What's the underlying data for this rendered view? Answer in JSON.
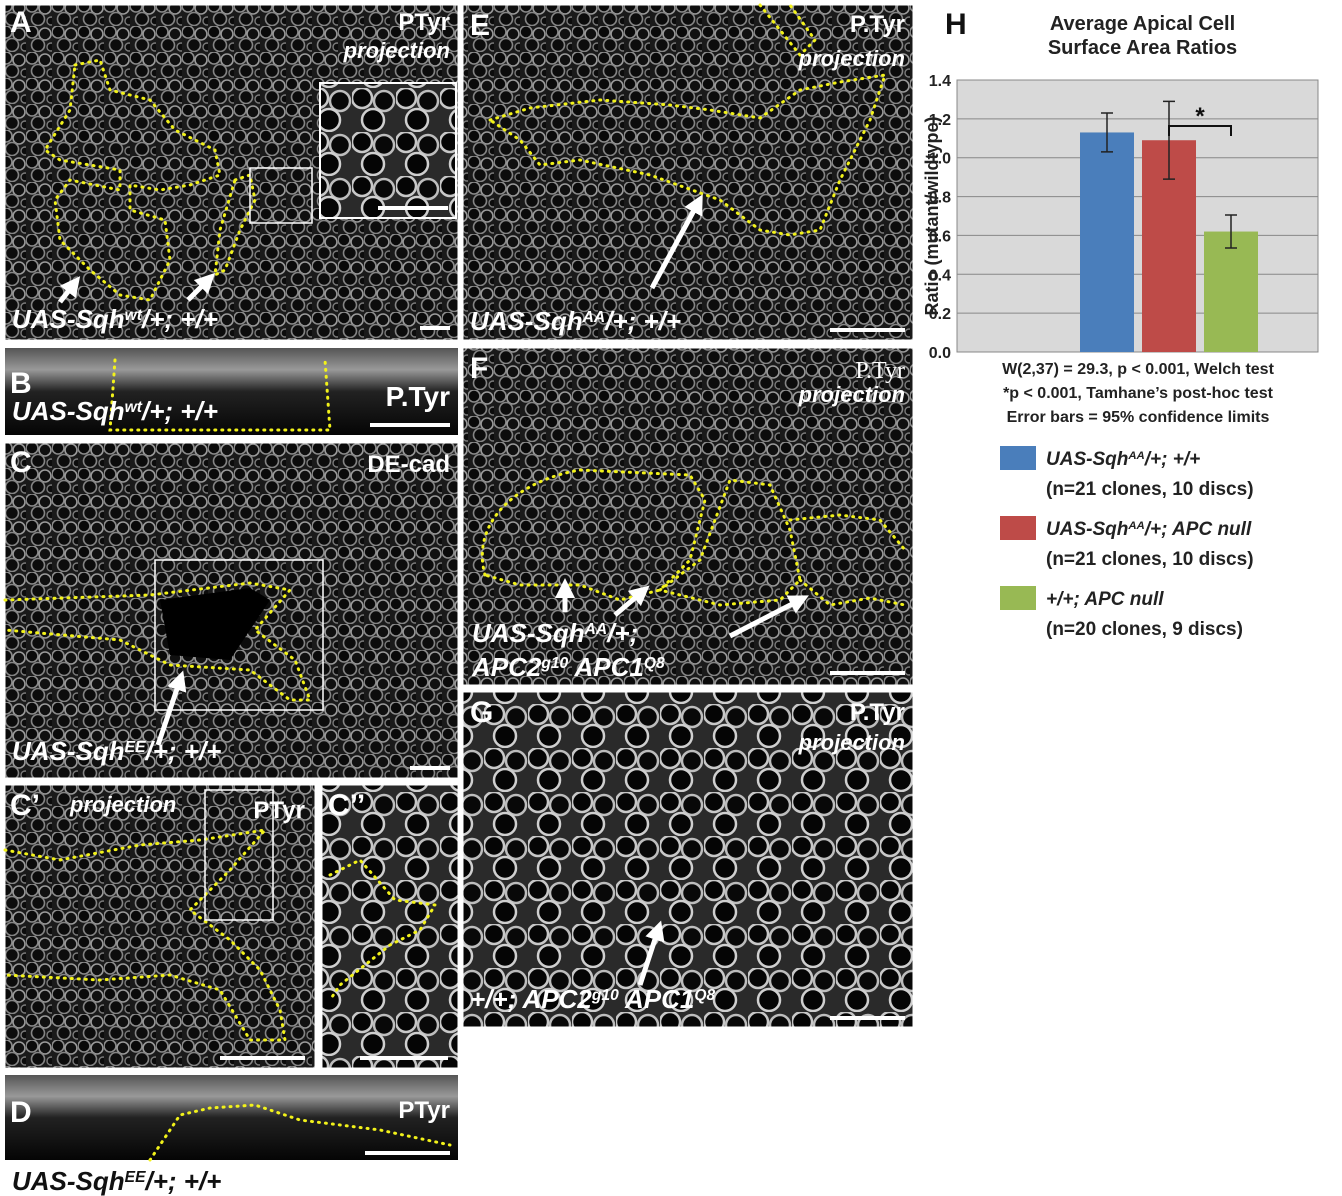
{
  "panels": [
    {
      "label": "A",
      "channel": "PTyr",
      "note": "projection",
      "genotype": [
        {
          "text": "UAS-Sqh"
        },
        {
          "text": "wt",
          "sup": true
        },
        {
          "text": "/+; +/+"
        }
      ]
    },
    {
      "label": "B",
      "channel": "P.Tyr",
      "genotype": [
        {
          "text": "UAS-Sqh"
        },
        {
          "text": "wt",
          "sup": true
        },
        {
          "text": "/+; +/+"
        }
      ]
    },
    {
      "label": "C",
      "channel": "DE-cad",
      "genotype": [
        {
          "text": "UAS-Sqh"
        },
        {
          "text": "EE",
          "sup": true
        },
        {
          "text": "/+; +/+"
        }
      ]
    },
    {
      "label": "C’",
      "channel": "PTyr",
      "note": "projection"
    },
    {
      "label": "C’’"
    },
    {
      "label": "D",
      "channel": "PTyr",
      "genotype": [
        {
          "text": "UAS-Sqh"
        },
        {
          "text": "EE",
          "sup": true
        },
        {
          "text": "/+; +/+"
        }
      ]
    },
    {
      "label": "E",
      "channel": "P.Tyr",
      "note": "projection",
      "genotype": [
        {
          "text": "UAS-Sqh"
        },
        {
          "text": "AA",
          "sup": true
        },
        {
          "text": "/+; +/+"
        }
      ]
    },
    {
      "label": "F",
      "channel": "P.Tyr",
      "note": "projection",
      "genotype": [
        {
          "text": "UAS-Sqh"
        },
        {
          "text": "AA",
          "sup": true
        },
        {
          "text": "/+;"
        }
      ],
      "genotype2": [
        {
          "text": "APC2"
        },
        {
          "text": "g10",
          "sup": true
        },
        {
          "text": " APC1"
        },
        {
          "text": "Q8",
          "sup": true
        }
      ]
    },
    {
      "label": "G",
      "channel": "P.Tyr",
      "note": "projection",
      "genotype": [
        {
          "text": "+/+; APC2"
        },
        {
          "text": "g10",
          "sup": true
        },
        {
          "text": " APC1"
        },
        {
          "text": "Q8",
          "sup": true
        }
      ]
    }
  ],
  "chart_data": {
    "type": "bar",
    "label": "H",
    "title": "Average Apical Cell Surface Area Ratios",
    "y_label": "Ratio (mutant/wildtype)",
    "ylim": [
      0,
      1.4
    ],
    "yticks": [
      {
        "value": 0,
        "label": "0.0"
      },
      0.2,
      0.4,
      0.6,
      0.8,
      {
        "value": 1,
        "label": "1.0"
      },
      1.2,
      1.4
    ],
    "grid": true,
    "series": [
      {
        "name": [
          {
            "text": "UAS-Sqh"
          },
          {
            "text": "AA",
            "sup": true
          },
          {
            "text": "/+; +/+"
          }
        ],
        "detail": "(n=21 clones, 10 discs)",
        "color": "#4a7ebb",
        "values": [
          1.13
        ],
        "errors": [
          0.1
        ]
      },
      {
        "name": [
          {
            "text": "UAS-Sqh"
          },
          {
            "text": "AA",
            "sup": true
          },
          {
            "text": "/+; APC null"
          }
        ],
        "detail": "(n=21 clones, 10 discs)",
        "color": "#be4b48",
        "values": [
          1.09
        ],
        "errors": [
          0.2
        ]
      },
      {
        "name": [
          {
            "text": "+/+; APC null"
          }
        ],
        "detail": "(n=20 clones, 9 discs)",
        "color": "#98b954",
        "values": [
          0.62
        ],
        "errors": [
          0.085
        ]
      }
    ],
    "significance": "*",
    "notes": [
      "W(2,37) = 29.3, p < 0.001, Welch test",
      "*p < 0.001, Tamhane’s post-hoc test",
      "Error bars = 95% confidence limits"
    ]
  }
}
